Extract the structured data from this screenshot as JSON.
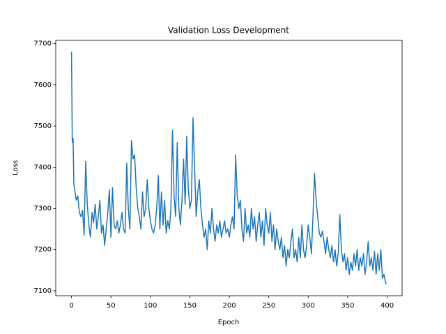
{
  "chart_data": {
    "type": "line",
    "title": "Validation Loss Development",
    "x_label": "Epoch",
    "y_label": "Loss",
    "color": "#1f77b4",
    "x": [
      0,
      1,
      2,
      3,
      4,
      6,
      8,
      10,
      12,
      14,
      16,
      18,
      20,
      22,
      24,
      26,
      28,
      30,
      32,
      34,
      36,
      38,
      40,
      42,
      44,
      46,
      48,
      50,
      52,
      54,
      56,
      58,
      60,
      62,
      64,
      66,
      68,
      70,
      72,
      74,
      76,
      78,
      80,
      82,
      84,
      86,
      88,
      90,
      92,
      94,
      96,
      98,
      100,
      102,
      104,
      106,
      108,
      110,
      112,
      114,
      116,
      118,
      120,
      122,
      124,
      126,
      128,
      130,
      132,
      134,
      136,
      138,
      140,
      142,
      144,
      146,
      148,
      150,
      152,
      154,
      156,
      158,
      160,
      162,
      164,
      166,
      168,
      170,
      172,
      174,
      176,
      178,
      180,
      182,
      184,
      186,
      188,
      190,
      192,
      194,
      196,
      198,
      200,
      202,
      204,
      206,
      208,
      210,
      212,
      214,
      216,
      218,
      220,
      222,
      224,
      226,
      228,
      230,
      232,
      234,
      236,
      238,
      240,
      242,
      244,
      246,
      248,
      250,
      252,
      254,
      256,
      258,
      260,
      262,
      264,
      266,
      268,
      270,
      272,
      274,
      276,
      278,
      280,
      282,
      284,
      286,
      288,
      290,
      292,
      294,
      296,
      298,
      300,
      302,
      304,
      306,
      308,
      310,
      312,
      314,
      316,
      318,
      320,
      322,
      324,
      326,
      328,
      330,
      332,
      334,
      336,
      338,
      340,
      342,
      344,
      346,
      348,
      350,
      352,
      354,
      356,
      358,
      360,
      362,
      364,
      366,
      368,
      370,
      372,
      374,
      376,
      378,
      380,
      382,
      384,
      386,
      388,
      390,
      392,
      394,
      396,
      398,
      399
    ],
    "values": [
      7680,
      7460,
      7470,
      7360,
      7345,
      7320,
      7330,
      7290,
      7280,
      7295,
      7235,
      7415,
      7310,
      7260,
      7230,
      7290,
      7265,
      7310,
      7250,
      7280,
      7320,
      7240,
      7260,
      7210,
      7250,
      7290,
      7345,
      7230,
      7350,
      7260,
      7250,
      7270,
      7240,
      7260,
      7290,
      7250,
      7240,
      7410,
      7300,
      7250,
      7465,
      7420,
      7430,
      7350,
      7300,
      7280,
      7250,
      7340,
      7280,
      7300,
      7370,
      7300,
      7270,
      7250,
      7240,
      7260,
      7300,
      7380,
      7250,
      7340,
      7260,
      7320,
      7240,
      7270,
      7250,
      7300,
      7490,
      7330,
      7280,
      7460,
      7300,
      7260,
      7320,
      7420,
      7310,
      7475,
      7350,
      7300,
      7320,
      7520,
      7400,
      7280,
      7340,
      7370,
      7300,
      7260,
      7230,
      7250,
      7200,
      7270,
      7240,
      7300,
      7250,
      7220,
      7260,
      7240,
      7270,
      7230,
      7250,
      7270,
      7240,
      7250,
      7230,
      7260,
      7280,
      7250,
      7430,
      7330,
      7300,
      7320,
      7250,
      7220,
      7300,
      7240,
      7260,
      7230,
      7300,
      7250,
      7280,
      7220,
      7260,
      7290,
      7230,
      7270,
      7210,
      7300,
      7260,
      7240,
      7290,
      7220,
      7260,
      7200,
      7250,
      7220,
      7200,
      7230,
      7180,
      7210,
      7160,
      7200,
      7180,
      7220,
      7250,
      7180,
      7200,
      7170,
      7230,
      7180,
      7260,
      7200,
      7180,
      7210,
      7260,
      7230,
      7190,
      7280,
      7385,
      7320,
      7280,
      7240,
      7230,
      7245,
      7220,
      7190,
      7230,
      7200,
      7180,
      7210,
      7170,
      7200,
      7160,
      7190,
      7285,
      7200,
      7170,
      7190,
      7150,
      7180,
      7140,
      7170,
      7150,
      7190,
      7160,
      7200,
      7150,
      7180,
      7160,
      7190,
      7140,
      7170,
      7220,
      7160,
      7180,
      7150,
      7195,
      7140,
      7190,
      7150,
      7200,
      7130,
      7140,
      7120,
      7116
    ],
    "xlim": [
      -19.95,
      418.95
    ],
    "ylim": [
      7088,
      7708
    ],
    "xticks": [
      0,
      50,
      100,
      150,
      200,
      250,
      300,
      350,
      400
    ],
    "yticks": [
      7100,
      7200,
      7300,
      7400,
      7500,
      7600,
      7700
    ]
  }
}
